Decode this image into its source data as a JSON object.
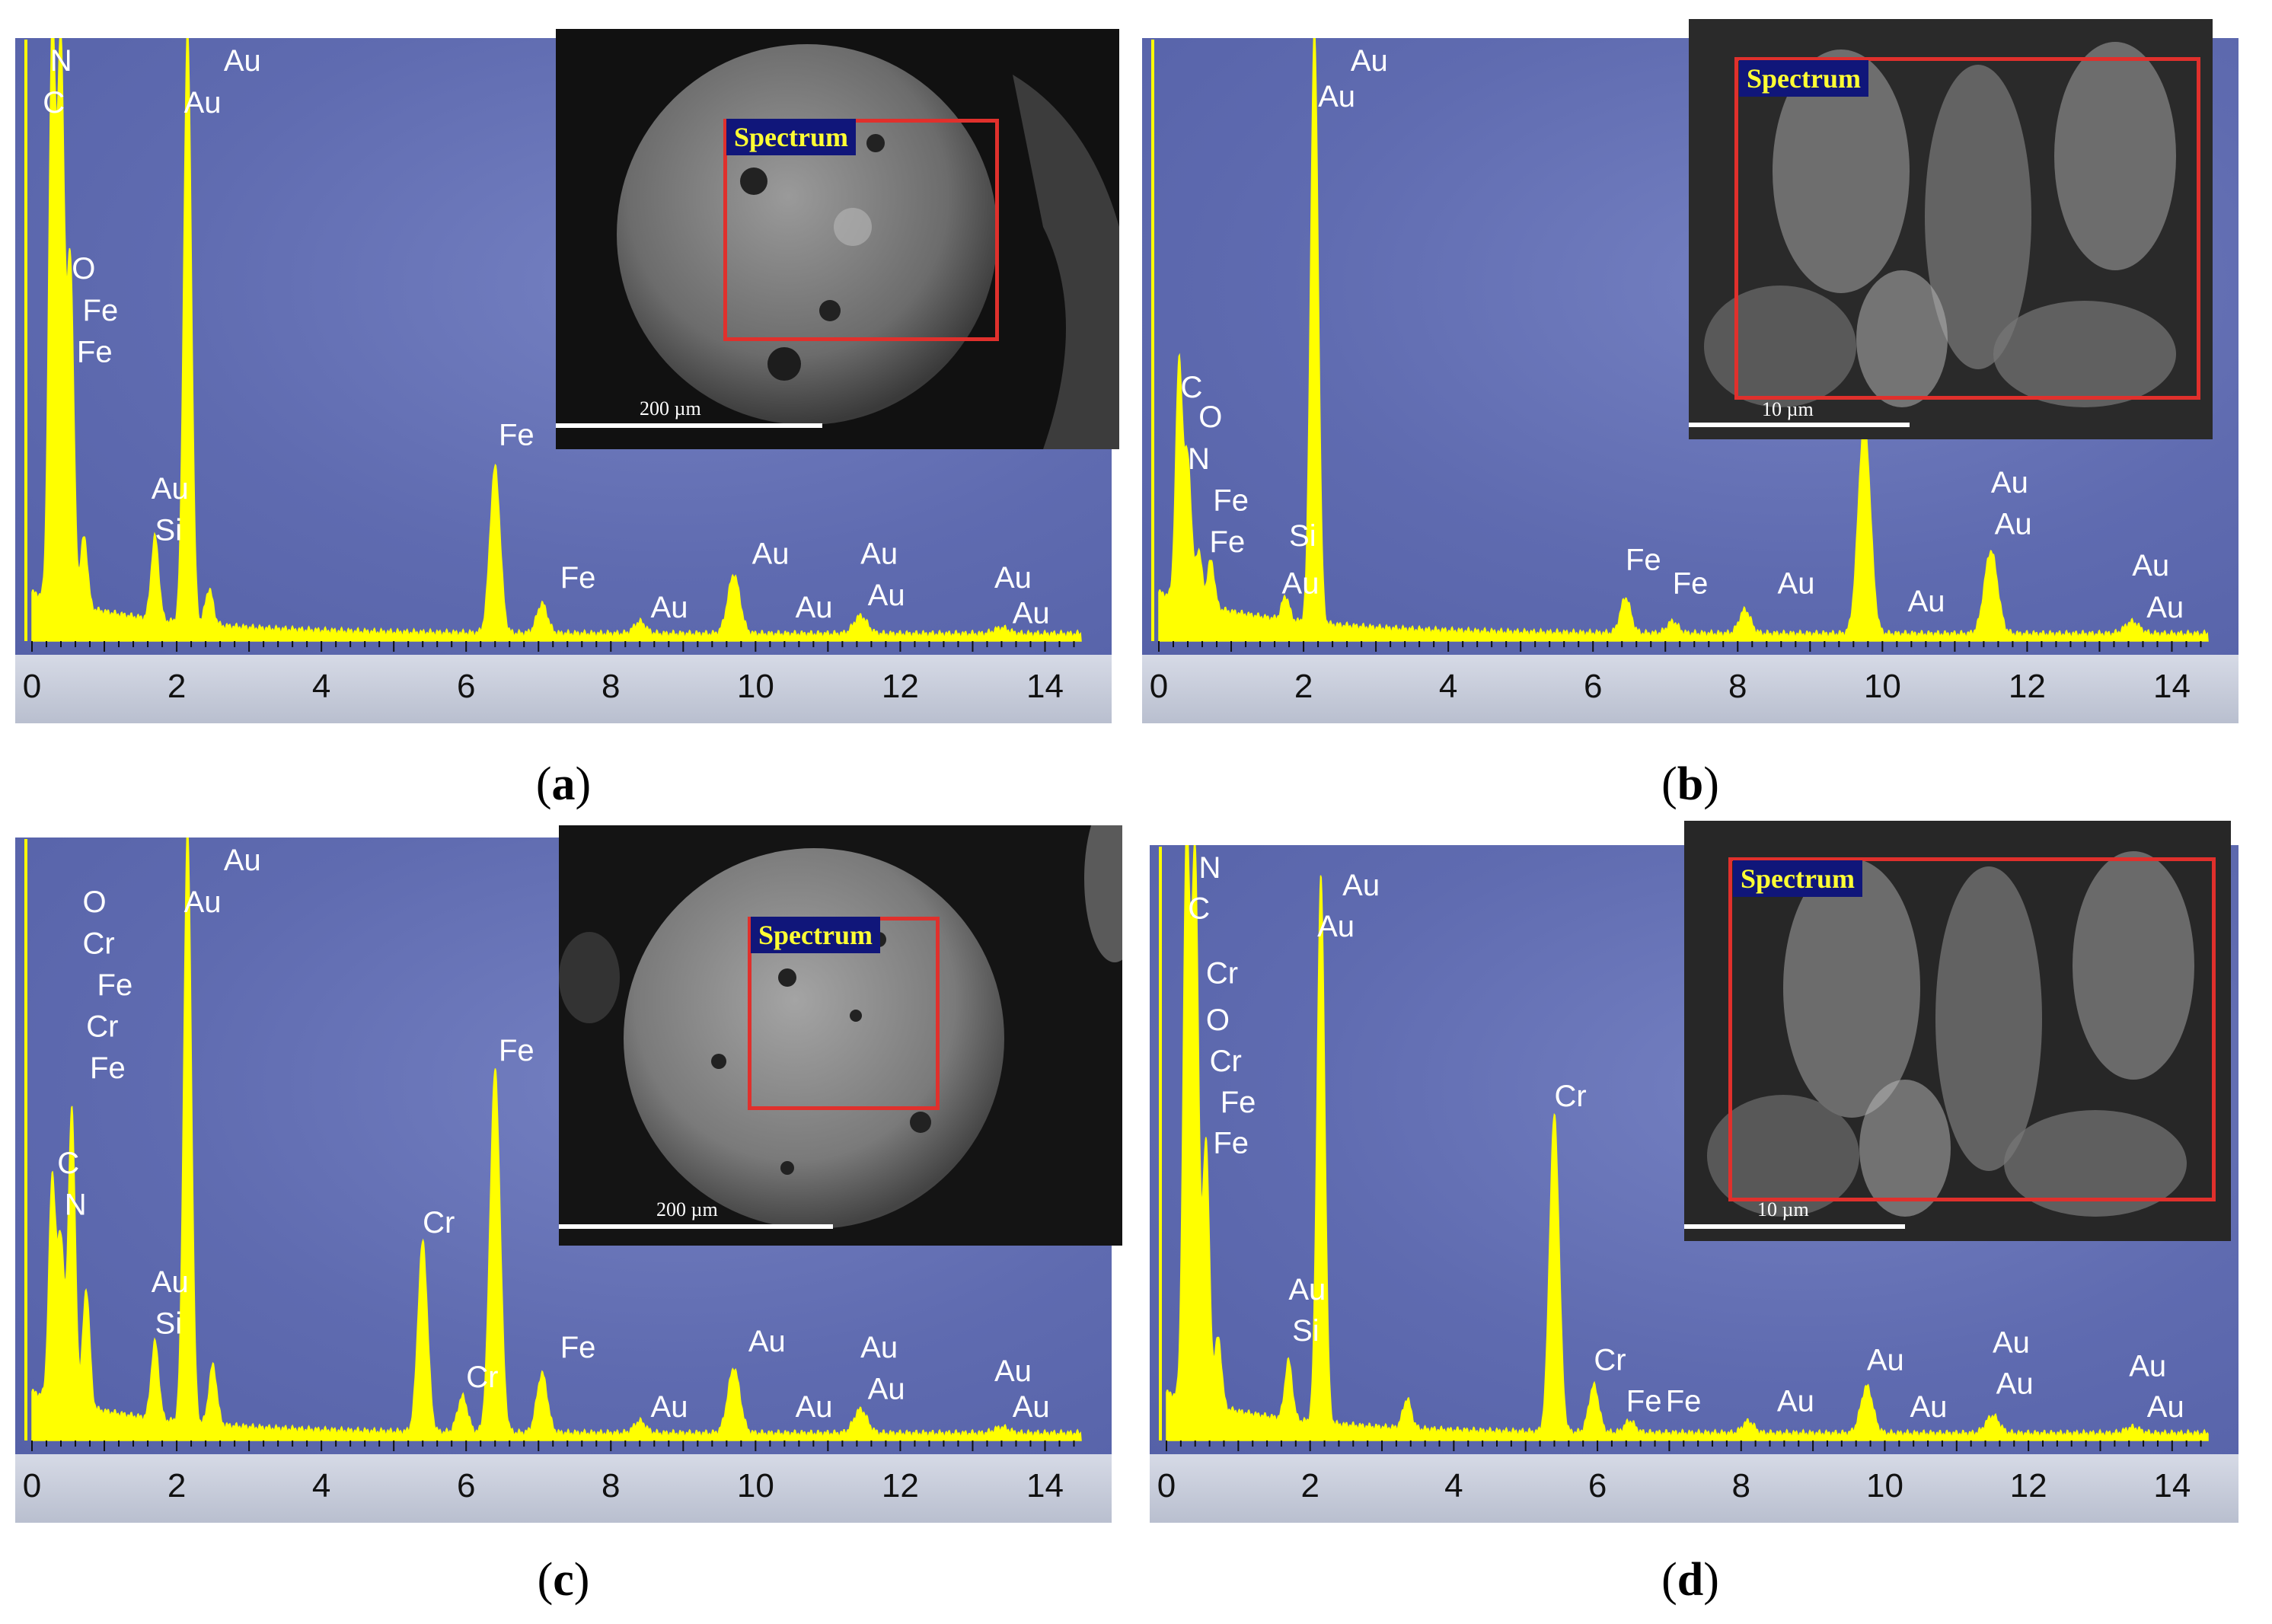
{
  "chart_data": [
    {
      "id": "a",
      "type": "line",
      "caption": "a",
      "xlim": [
        0,
        14.5
      ],
      "xticks": [
        0,
        2,
        4,
        6,
        8,
        10,
        12,
        14
      ],
      "peaks": [
        {
          "x": 0.28,
          "h": 0.96
        },
        {
          "x": 0.4,
          "h": 0.92
        },
        {
          "x": 0.53,
          "h": 0.58
        },
        {
          "x": 0.72,
          "h": 0.12
        },
        {
          "x": 1.7,
          "h": 0.14
        },
        {
          "x": 2.15,
          "h": 1.0
        },
        {
          "x": 2.45,
          "h": 0.06
        },
        {
          "x": 6.4,
          "h": 0.28
        },
        {
          "x": 7.05,
          "h": 0.05
        },
        {
          "x": 8.4,
          "h": 0.02
        },
        {
          "x": 9.7,
          "h": 0.1
        },
        {
          "x": 11.45,
          "h": 0.03
        },
        {
          "x": 13.4,
          "h": 0.01
        }
      ],
      "peak_labels": [
        {
          "text": "N",
          "x": 0.25,
          "h": 0.96
        },
        {
          "text": "C",
          "x": 0.15,
          "h": 0.89
        },
        {
          "text": "O",
          "x": 0.55,
          "h": 0.61
        },
        {
          "text": "Fe",
          "x": 0.7,
          "h": 0.54
        },
        {
          "text": "Fe",
          "x": 0.62,
          "h": 0.47
        },
        {
          "text": "Au",
          "x": 2.65,
          "h": 0.96
        },
        {
          "text": "Au",
          "x": 2.1,
          "h": 0.89
        },
        {
          "text": "Au",
          "x": 1.65,
          "h": 0.24
        },
        {
          "text": "Si",
          "x": 1.7,
          "h": 0.17
        },
        {
          "text": "Fe",
          "x": 6.45,
          "h": 0.33
        },
        {
          "text": "Fe",
          "x": 7.3,
          "h": 0.09
        },
        {
          "text": "Au",
          "x": 8.55,
          "h": 0.04
        },
        {
          "text": "Au",
          "x": 9.95,
          "h": 0.13
        },
        {
          "text": "Au",
          "x": 10.55,
          "h": 0.04
        },
        {
          "text": "Au",
          "x": 11.45,
          "h": 0.13
        },
        {
          "text": "Au",
          "x": 11.55,
          "h": 0.06
        },
        {
          "text": "Au",
          "x": 13.3,
          "h": 0.09
        },
        {
          "text": "Au",
          "x": 13.55,
          "h": 0.03
        }
      ],
      "inset": {
        "label": "Spectrum",
        "scale": "200 µm"
      }
    },
    {
      "id": "b",
      "type": "line",
      "caption": "b",
      "xlim": [
        0,
        14.5
      ],
      "xticks": [
        0,
        2,
        4,
        6,
        8,
        10,
        12,
        14
      ],
      "peaks": [
        {
          "x": 0.28,
          "h": 0.4
        },
        {
          "x": 0.4,
          "h": 0.24
        },
        {
          "x": 0.55,
          "h": 0.09
        },
        {
          "x": 0.72,
          "h": 0.08
        },
        {
          "x": 1.75,
          "h": 0.04
        },
        {
          "x": 2.15,
          "h": 1.0
        },
        {
          "x": 6.45,
          "h": 0.06
        },
        {
          "x": 7.1,
          "h": 0.02
        },
        {
          "x": 8.1,
          "h": 0.04
        },
        {
          "x": 9.75,
          "h": 0.36
        },
        {
          "x": 11.5,
          "h": 0.14
        },
        {
          "x": 13.45,
          "h": 0.02
        }
      ],
      "peak_labels": [
        {
          "text": "C",
          "x": 0.3,
          "h": 0.41
        },
        {
          "text": "O",
          "x": 0.55,
          "h": 0.36
        },
        {
          "text": "N",
          "x": 0.4,
          "h": 0.29
        },
        {
          "text": "Fe",
          "x": 0.75,
          "h": 0.22
        },
        {
          "text": "Fe",
          "x": 0.7,
          "h": 0.15
        },
        {
          "text": "Si",
          "x": 1.8,
          "h": 0.16
        },
        {
          "text": "Au",
          "x": 1.7,
          "h": 0.08
        },
        {
          "text": "Au",
          "x": 2.65,
          "h": 0.96
        },
        {
          "text": "Au",
          "x": 2.2,
          "h": 0.9
        },
        {
          "text": "Fe",
          "x": 6.45,
          "h": 0.12
        },
        {
          "text": "Fe",
          "x": 7.1,
          "h": 0.08
        },
        {
          "text": "Au",
          "x": 8.55,
          "h": 0.08
        },
        {
          "text": "Au",
          "x": 10.35,
          "h": 0.05
        },
        {
          "text": "Au",
          "x": 11.5,
          "h": 0.25
        },
        {
          "text": "Au",
          "x": 11.55,
          "h": 0.18
        },
        {
          "text": "Au",
          "x": 13.45,
          "h": 0.11
        },
        {
          "text": "Au",
          "x": 13.65,
          "h": 0.04
        }
      ],
      "inset": {
        "label": "Spectrum",
        "scale": "10 µm"
      }
    },
    {
      "id": "c",
      "type": "line",
      "caption": "c",
      "xlim": [
        0,
        14.5
      ],
      "xticks": [
        0,
        2,
        4,
        6,
        8,
        10,
        12,
        14
      ],
      "peaks": [
        {
          "x": 0.28,
          "h": 0.37
        },
        {
          "x": 0.4,
          "h": 0.27
        },
        {
          "x": 0.55,
          "h": 0.5
        },
        {
          "x": 0.75,
          "h": 0.2
        },
        {
          "x": 1.7,
          "h": 0.13
        },
        {
          "x": 2.15,
          "h": 1.0
        },
        {
          "x": 2.5,
          "h": 0.1
        },
        {
          "x": 5.4,
          "h": 0.32
        },
        {
          "x": 5.95,
          "h": 0.06
        },
        {
          "x": 6.4,
          "h": 0.61
        },
        {
          "x": 7.05,
          "h": 0.1
        },
        {
          "x": 8.4,
          "h": 0.02
        },
        {
          "x": 9.7,
          "h": 0.11
        },
        {
          "x": 11.45,
          "h": 0.04
        },
        {
          "x": 13.4,
          "h": 0.01
        }
      ],
      "peak_labels": [
        {
          "text": "O",
          "x": 0.7,
          "h": 0.89
        },
        {
          "text": "Cr",
          "x": 0.7,
          "h": 0.82
        },
        {
          "text": "Fe",
          "x": 0.9,
          "h": 0.75
        },
        {
          "text": "Cr",
          "x": 0.75,
          "h": 0.68
        },
        {
          "text": "Fe",
          "x": 0.8,
          "h": 0.61
        },
        {
          "text": "C",
          "x": 0.35,
          "h": 0.45
        },
        {
          "text": "N",
          "x": 0.45,
          "h": 0.38
        },
        {
          "text": "Au",
          "x": 2.65,
          "h": 0.96
        },
        {
          "text": "Au",
          "x": 2.1,
          "h": 0.89
        },
        {
          "text": "Au",
          "x": 1.65,
          "h": 0.25
        },
        {
          "text": "Si",
          "x": 1.7,
          "h": 0.18
        },
        {
          "text": "Cr",
          "x": 5.4,
          "h": 0.35
        },
        {
          "text": "Cr",
          "x": 6.0,
          "h": 0.09
        },
        {
          "text": "Fe",
          "x": 6.45,
          "h": 0.64
        },
        {
          "text": "Fe",
          "x": 7.3,
          "h": 0.14
        },
        {
          "text": "Au",
          "x": 8.55,
          "h": 0.04
        },
        {
          "text": "Au",
          "x": 9.9,
          "h": 0.15
        },
        {
          "text": "Au",
          "x": 10.55,
          "h": 0.04
        },
        {
          "text": "Au",
          "x": 11.45,
          "h": 0.14
        },
        {
          "text": "Au",
          "x": 11.55,
          "h": 0.07
        },
        {
          "text": "Au",
          "x": 13.3,
          "h": 0.1
        },
        {
          "text": "Au",
          "x": 13.55,
          "h": 0.04
        }
      ],
      "inset": {
        "label": "Spectrum",
        "scale": "200 µm"
      }
    },
    {
      "id": "d",
      "type": "line",
      "caption": "d",
      "xlim": [
        0,
        14.5
      ],
      "xticks": [
        0,
        2,
        4,
        6,
        8,
        10,
        12,
        14
      ],
      "peaks": [
        {
          "x": 0.28,
          "h": 0.96
        },
        {
          "x": 0.4,
          "h": 0.92
        },
        {
          "x": 0.55,
          "h": 0.45
        },
        {
          "x": 0.72,
          "h": 0.12
        },
        {
          "x": 1.7,
          "h": 0.1
        },
        {
          "x": 2.15,
          "h": 0.93
        },
        {
          "x": 3.35,
          "h": 0.05
        },
        {
          "x": 5.4,
          "h": 0.54
        },
        {
          "x": 5.95,
          "h": 0.08
        },
        {
          "x": 6.45,
          "h": 0.02
        },
        {
          "x": 8.1,
          "h": 0.02
        },
        {
          "x": 9.75,
          "h": 0.08
        },
        {
          "x": 11.5,
          "h": 0.03
        },
        {
          "x": 13.45,
          "h": 0.01
        }
      ],
      "peak_labels": [
        {
          "text": "N",
          "x": 0.45,
          "h": 0.96
        },
        {
          "text": "C",
          "x": 0.3,
          "h": 0.89
        },
        {
          "text": "Cr",
          "x": 0.55,
          "h": 0.78
        },
        {
          "text": "O",
          "x": 0.55,
          "h": 0.7
        },
        {
          "text": "Cr",
          "x": 0.6,
          "h": 0.63
        },
        {
          "text": "Fe",
          "x": 0.75,
          "h": 0.56
        },
        {
          "text": "Fe",
          "x": 0.65,
          "h": 0.49
        },
        {
          "text": "Au",
          "x": 2.45,
          "h": 0.93
        },
        {
          "text": "Au",
          "x": 2.1,
          "h": 0.86
        },
        {
          "text": "Au",
          "x": 1.7,
          "h": 0.24
        },
        {
          "text": "Si",
          "x": 1.75,
          "h": 0.17
        },
        {
          "text": "Cr",
          "x": 5.4,
          "h": 0.57
        },
        {
          "text": "Cr",
          "x": 5.95,
          "h": 0.12
        },
        {
          "text": "Fe",
          "x": 6.4,
          "h": 0.05
        },
        {
          "text": "Fe",
          "x": 6.95,
          "h": 0.05
        },
        {
          "text": "Au",
          "x": 8.5,
          "h": 0.05
        },
        {
          "text": "Au",
          "x": 9.75,
          "h": 0.12
        },
        {
          "text": "Au",
          "x": 10.35,
          "h": 0.04
        },
        {
          "text": "Au",
          "x": 11.5,
          "h": 0.15
        },
        {
          "text": "Au",
          "x": 11.55,
          "h": 0.08
        },
        {
          "text": "Au",
          "x": 13.4,
          "h": 0.11
        },
        {
          "text": "Au",
          "x": 13.65,
          "h": 0.04
        }
      ],
      "inset": {
        "label": "Spectrum",
        "scale": "10 µm"
      }
    }
  ],
  "colors": {
    "spectrum": "#ffff00",
    "plot_background": "#5f6bb0",
    "peak_label": "#ffffff",
    "roi_box": "#e0302c",
    "roi_tag_bg": "#10167a",
    "roi_tag_text": "#ffff33"
  }
}
